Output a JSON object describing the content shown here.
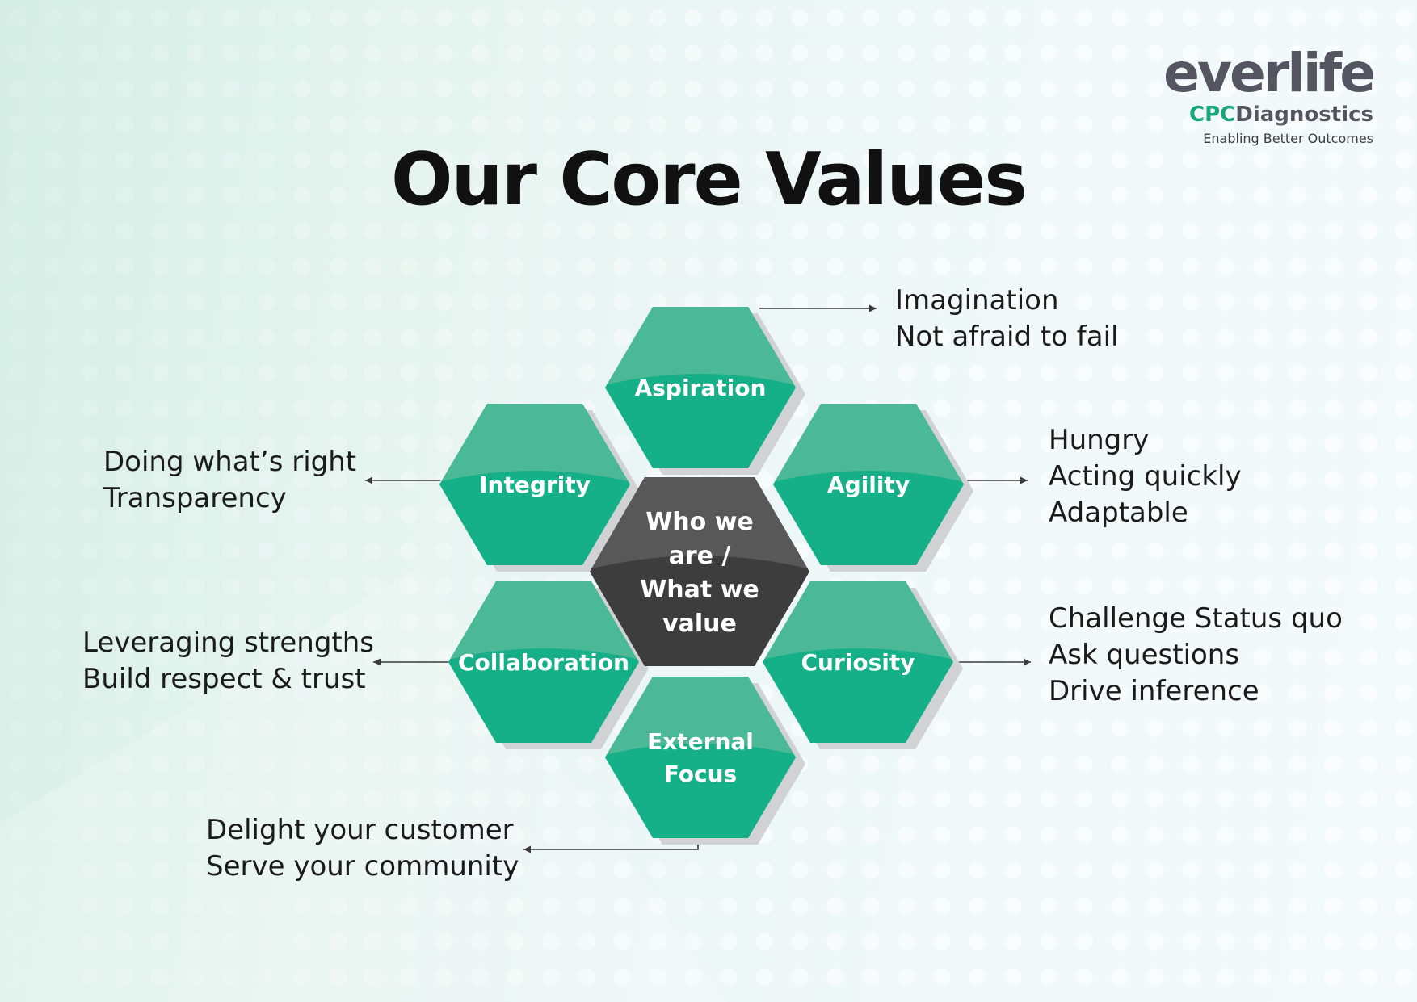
{
  "logo": {
    "word": "everlife",
    "sub_part1": "CPC",
    "sub_part2": "Diagnostics",
    "tagline": "Enabling Better Outcomes"
  },
  "title": "Our Core Values",
  "center": [
    "Who we",
    "are /",
    "What we",
    "value"
  ],
  "values": [
    {
      "label": [
        "Aspiration"
      ],
      "lines": [
        "Imagination",
        "Not afraid to fail"
      ]
    },
    {
      "label": [
        "Integrity"
      ],
      "lines": [
        "Doing what’s right",
        "Transparency"
      ]
    },
    {
      "label": [
        "Agility"
      ],
      "lines": [
        "Hungry",
        "Acting quickly",
        "Adaptable"
      ]
    },
    {
      "label": [
        "Collaboration"
      ],
      "lines": [
        "Leveraging strengths",
        "Build respect & trust"
      ]
    },
    {
      "label": [
        "Curiosity"
      ],
      "lines": [
        "Challenge Status quo",
        "Ask questions",
        "Drive inference"
      ]
    },
    {
      "label": [
        "External",
        "Focus"
      ],
      "lines": [
        "Delight your customer",
        "Serve your community"
      ]
    }
  ],
  "colors": {
    "hex_top": "#4cb996",
    "hex_bottom": "#16b088",
    "hex_shadow": "#d0d2d4",
    "center_top": "#585858",
    "center_bottom": "#3d3d3d",
    "title": "#111111",
    "brand_green": "#18a67d",
    "brand_gray": "#545560"
  }
}
